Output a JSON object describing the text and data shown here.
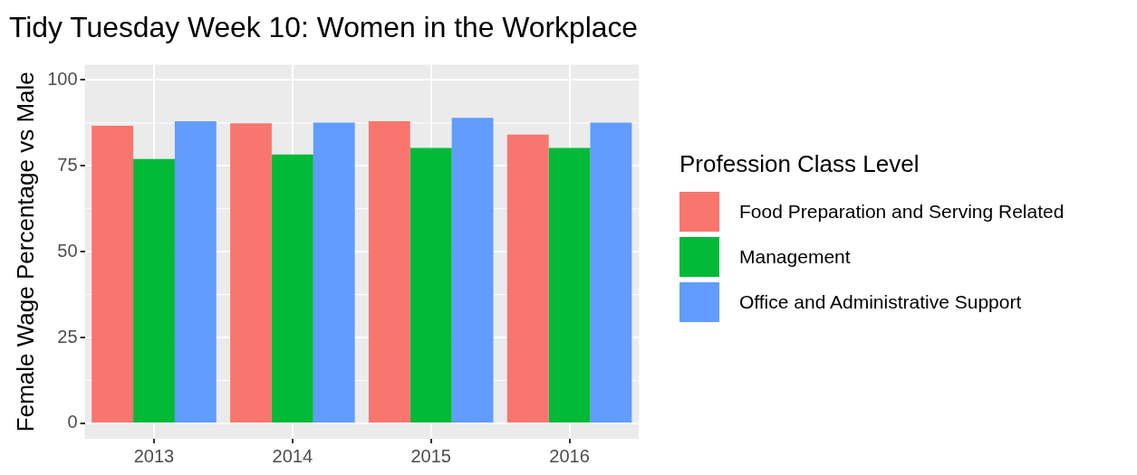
{
  "chart_data": {
    "type": "bar",
    "title": "Tidy Tuesday Week 10: Women in the Workplace",
    "ylabel": "Female Wage Percentage vs Male",
    "legend_title": "Profession Class Level",
    "categories": [
      "2013",
      "2014",
      "2015",
      "2016"
    ],
    "series": [
      {
        "name": "Food Preparation and Serving Related",
        "color": "#f8766d",
        "values": [
          86.7,
          87.4,
          88.0,
          84.1
        ]
      },
      {
        "name": "Management",
        "color": "#00ba38",
        "values": [
          77.0,
          78.3,
          80.2,
          80.2
        ]
      },
      {
        "name": "Office and Administrative Support",
        "color": "#619cff",
        "values": [
          88.0,
          87.6,
          89.0,
          87.6
        ]
      }
    ],
    "ylim": [
      -4.5,
      104.5
    ],
    "yticks": [
      0,
      25,
      50,
      75,
      100
    ],
    "grid": true,
    "legend": "right"
  }
}
